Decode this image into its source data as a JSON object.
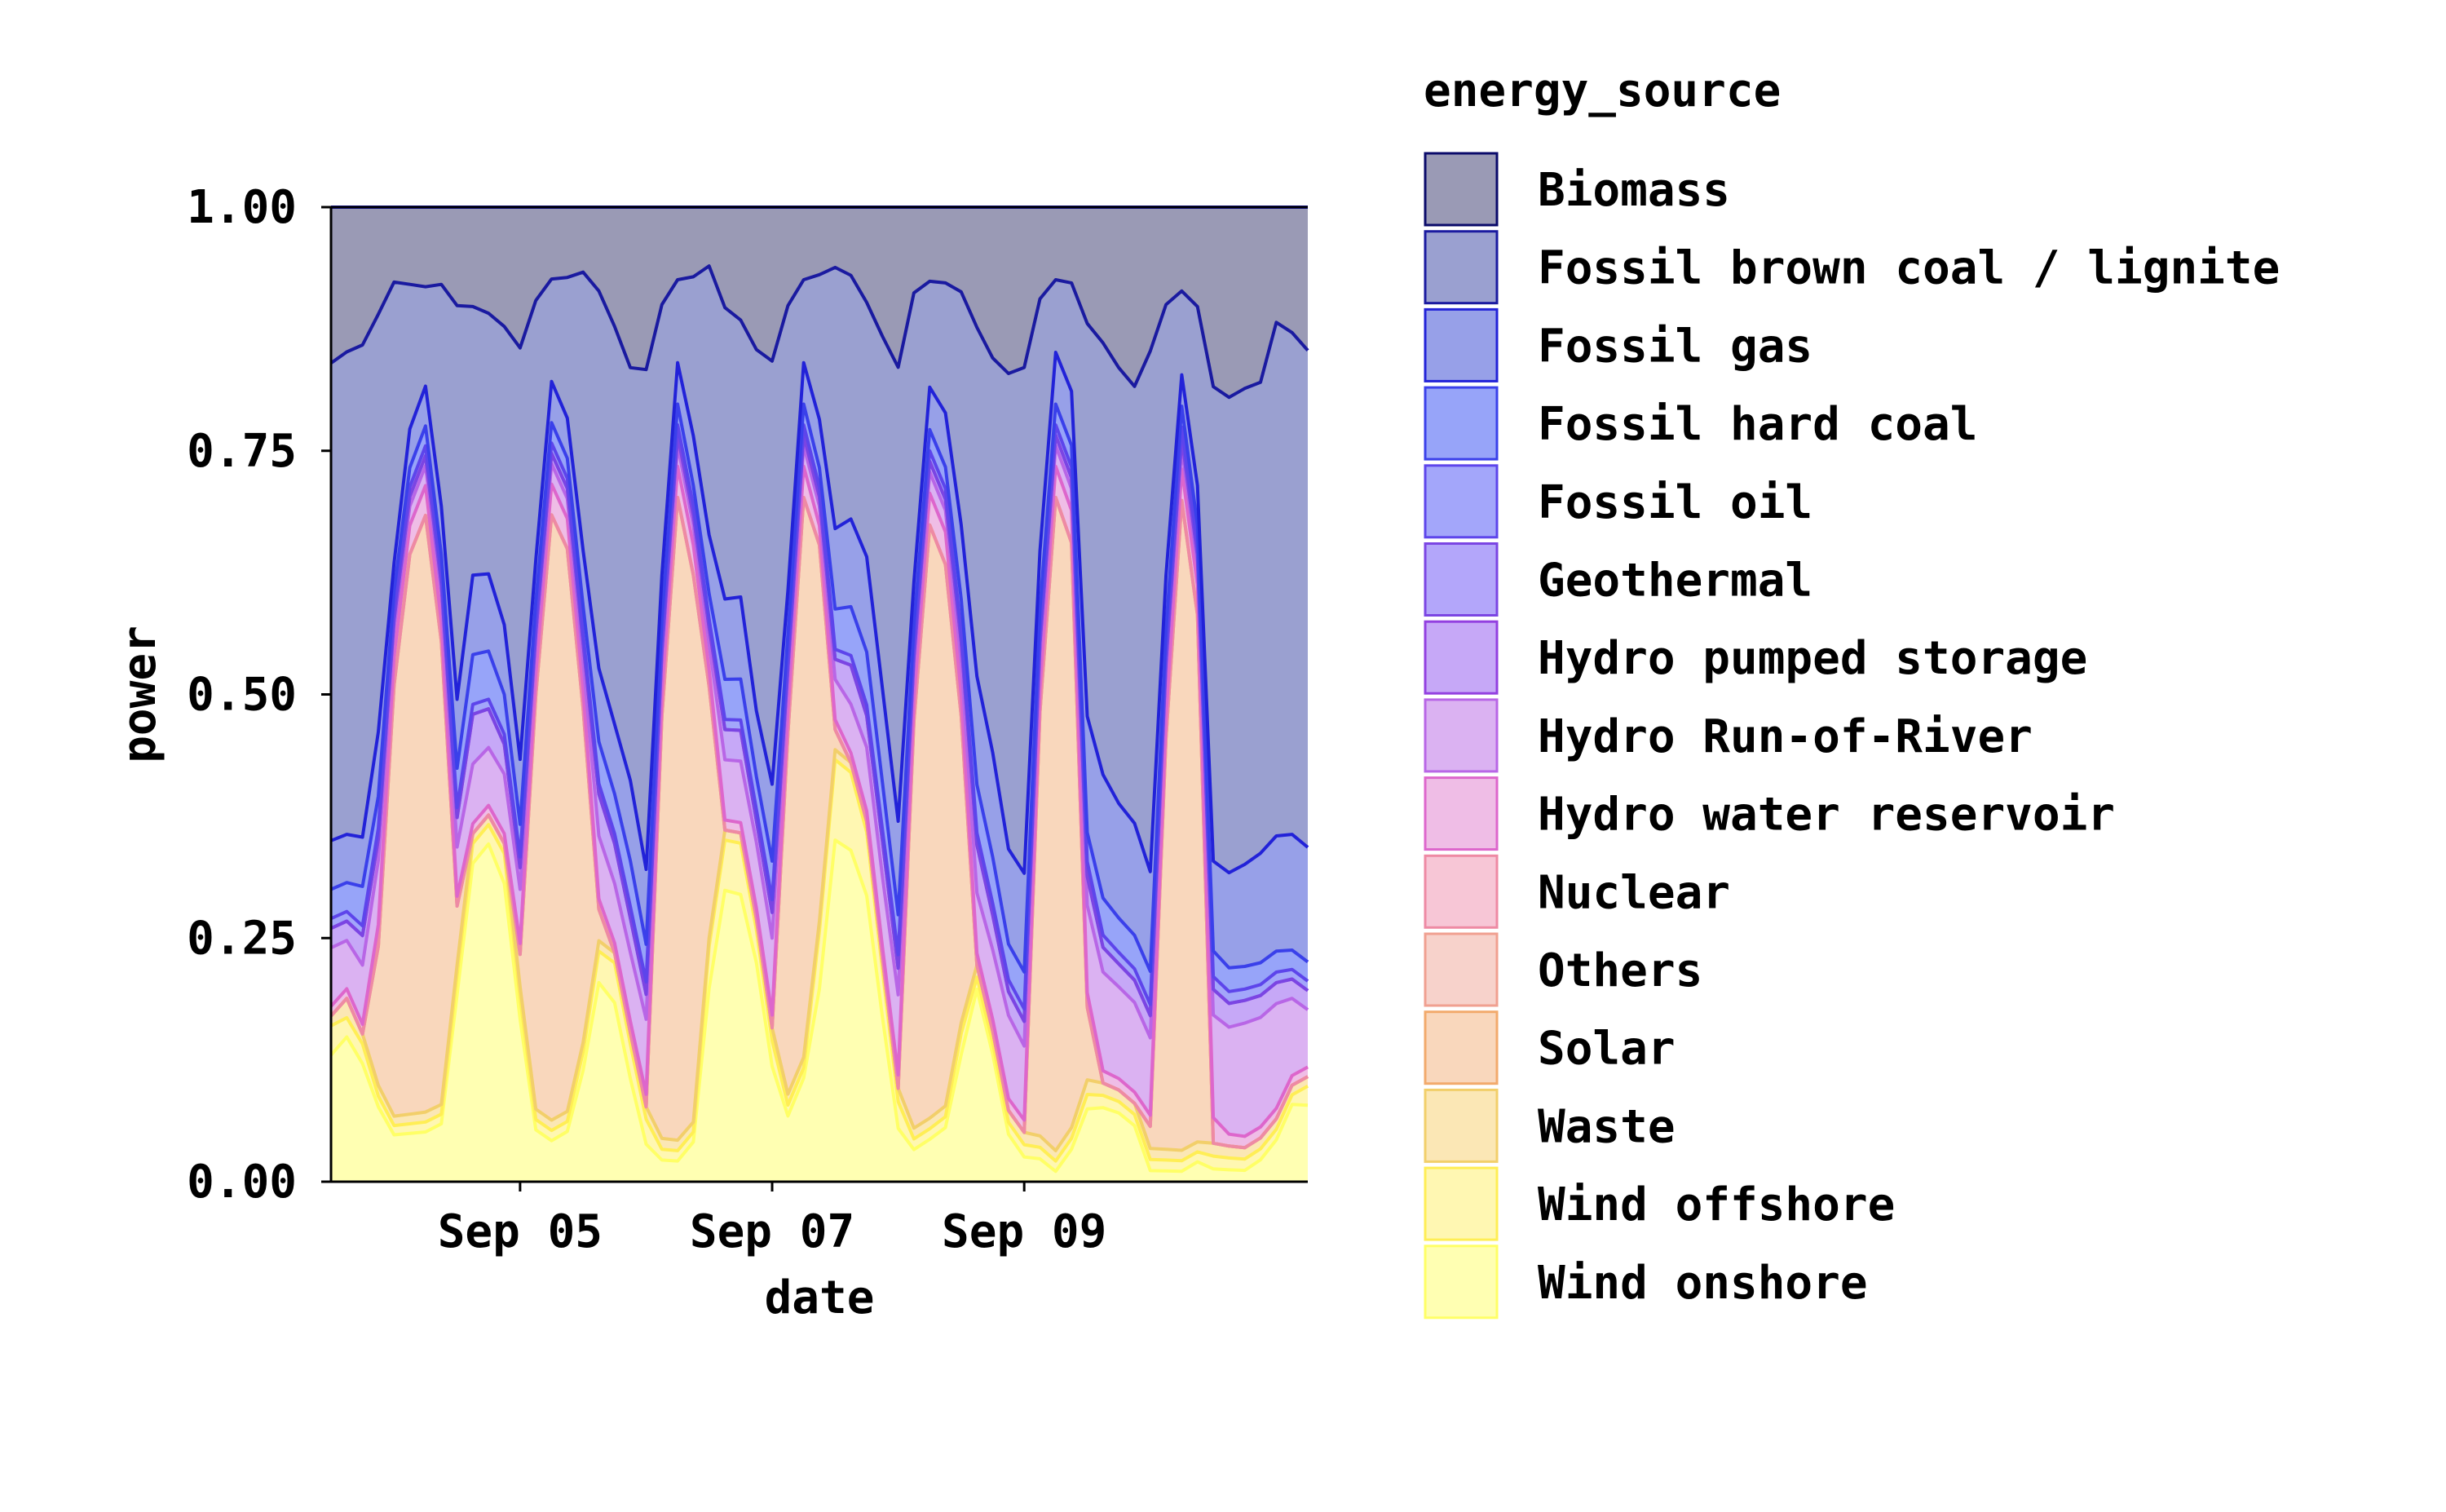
{
  "chart_data": {
    "type": "area",
    "stacked": true,
    "normalized": true,
    "title": "",
    "xlabel": "date",
    "ylabel": "power",
    "x_range": [
      "2023-09-03T12:00",
      "2023-09-11T06:00"
    ],
    "ylim": [
      0,
      1
    ],
    "y_ticks": [
      0.0,
      0.25,
      0.5,
      0.75,
      1.0
    ],
    "y_tick_labels": [
      "0.00",
      "0.25",
      "0.50",
      "0.75",
      "1.00"
    ],
    "x_ticks": [
      "2023-09-05",
      "2023-09-07",
      "2023-09-09"
    ],
    "x_tick_labels": [
      "Sep 05",
      "Sep 07",
      "Sep 09"
    ],
    "grid": false,
    "legend": {
      "title": "energy_source",
      "placement": "right"
    },
    "x": [
      "2023-09-03T12:00",
      "2023-09-03T15:00",
      "2023-09-03T18:00",
      "2023-09-03T21:00",
      "2023-09-04T00:00",
      "2023-09-04T03:00",
      "2023-09-04T06:00",
      "2023-09-04T09:00",
      "2023-09-04T12:00",
      "2023-09-04T15:00",
      "2023-09-04T18:00",
      "2023-09-04T21:00",
      "2023-09-05T00:00",
      "2023-09-05T03:00",
      "2023-09-05T06:00",
      "2023-09-05T09:00",
      "2023-09-05T12:00",
      "2023-09-05T15:00",
      "2023-09-05T18:00",
      "2023-09-05T21:00",
      "2023-09-06T00:00",
      "2023-09-06T03:00",
      "2023-09-06T06:00",
      "2023-09-06T09:00",
      "2023-09-06T12:00",
      "2023-09-06T15:00",
      "2023-09-06T18:00",
      "2023-09-06T21:00",
      "2023-09-07T00:00",
      "2023-09-07T03:00",
      "2023-09-07T06:00",
      "2023-09-07T09:00",
      "2023-09-07T12:00",
      "2023-09-07T15:00",
      "2023-09-07T18:00",
      "2023-09-07T21:00",
      "2023-09-08T00:00",
      "2023-09-08T03:00",
      "2023-09-08T06:00",
      "2023-09-08T09:00",
      "2023-09-08T12:00",
      "2023-09-08T15:00",
      "2023-09-08T18:00",
      "2023-09-08T21:00",
      "2023-09-09T00:00",
      "2023-09-09T03:00",
      "2023-09-09T06:00",
      "2023-09-09T09:00",
      "2023-09-09T12:00",
      "2023-09-09T15:00",
      "2023-09-09T18:00",
      "2023-09-09T21:00",
      "2023-09-10T00:00",
      "2023-09-10T03:00",
      "2023-09-10T06:00",
      "2023-09-10T09:00",
      "2023-09-10T12:00",
      "2023-09-10T15:00",
      "2023-09-10T18:00",
      "2023-09-10T21:00",
      "2023-09-11T00:00",
      "2023-09-11T03:00",
      "2023-09-11T06:00"
    ],
    "series": [
      {
        "name": "Wind onshore",
        "color": "#ffffb2",
        "line_color": "#ffff66",
        "values": [
          0.13,
          0.15,
          0.12,
          0.07,
          0.05,
          0.05,
          0.05,
          0.06,
          0.19,
          0.32,
          0.35,
          0.3,
          0.15,
          0.05,
          0.04,
          0.05,
          0.12,
          0.19,
          0.18,
          0.09,
          0.03,
          0.02,
          0.02,
          0.04,
          0.23,
          0.29,
          0.28,
          0.2,
          0.09,
          0.06,
          0.1,
          0.2,
          0.34,
          0.34,
          0.27,
          0.14,
          0.04,
          0.03,
          0.04,
          0.05,
          0.12,
          0.16,
          0.11,
          0.04,
          0.02,
          0.02,
          0.01,
          0.03,
          0.05,
          0.06,
          0.06,
          0.05,
          0.01,
          0.01,
          0.01,
          0.02,
          0.01,
          0.01,
          0.01,
          0.02,
          0.04,
          0.08,
          0.08
        ]
      },
      {
        "name": "Wind offshore",
        "color": "#fff7b2",
        "line_color": "#ffee55",
        "values": [
          0.03,
          0.02,
          0.02,
          0.01,
          0.01,
          0.01,
          0.01,
          0.01,
          0.02,
          0.02,
          0.02,
          0.03,
          0.02,
          0.01,
          0.01,
          0.01,
          0.02,
          0.03,
          0.04,
          0.03,
          0.02,
          0.01,
          0.01,
          0.01,
          0.05,
          0.05,
          0.05,
          0.03,
          0.02,
          0.01,
          0.01,
          0.06,
          0.08,
          0.08,
          0.06,
          0.04,
          0.02,
          0.01,
          0.01,
          0.01,
          0.02,
          0.01,
          0.01,
          0.01,
          0.01,
          0.01,
          0.01,
          0.01,
          0.01,
          0.01,
          0.01,
          0.01,
          0.01,
          0.01,
          0.01,
          0.01,
          0.01,
          0.01,
          0.01,
          0.01,
          0.01,
          0.01,
          0.02
        ]
      },
      {
        "name": "Waste",
        "color": "#fbe7b5",
        "line_color": "#f2cf6a",
        "values": [
          0.01,
          0.02,
          0.01,
          0.01,
          0.01,
          0.01,
          0.01,
          0.01,
          0.01,
          0.01,
          0.01,
          0.01,
          0.01,
          0.01,
          0.01,
          0.01,
          0.01,
          0.01,
          0.01,
          0.01,
          0.01,
          0.01,
          0.01,
          0.01,
          0.01,
          0.01,
          0.01,
          0.01,
          0.01,
          0.01,
          0.01,
          0.01,
          0.01,
          0.01,
          0.01,
          0.01,
          0.01,
          0.01,
          0.01,
          0.01,
          0.01,
          0.01,
          0.01,
          0.01,
          0.01,
          0.01,
          0.01,
          0.01,
          0.01,
          0.01,
          0.01,
          0.01,
          0.01,
          0.01,
          0.01,
          0.01,
          0.01,
          0.01,
          0.01,
          0.01,
          0.01,
          0.01,
          0.01
        ]
      },
      {
        "name": "Solar",
        "color": "#f9d7bc",
        "line_color": "#f2aa6c",
        "values": [
          0.0,
          0.0,
          0.0,
          0.13,
          0.46,
          0.58,
          0.6,
          0.48,
          0.06,
          0.0,
          0.0,
          0.0,
          0.03,
          0.4,
          0.59,
          0.56,
          0.36,
          0.03,
          0.0,
          0.0,
          0.0,
          0.39,
          0.62,
          0.55,
          0.3,
          0.0,
          0.0,
          0.0,
          0.0,
          0.33,
          0.54,
          0.39,
          0.02,
          0.0,
          0.0,
          0.0,
          0.0,
          0.38,
          0.56,
          0.5,
          0.29,
          0.0,
          0.0,
          0.0,
          0.0,
          0.37,
          0.63,
          0.54,
          0.05,
          0.0,
          0.0,
          0.0,
          0.02,
          0.38,
          0.62,
          0.53,
          0.0,
          0.0,
          0.0,
          0.0,
          0.0,
          0.0,
          0.0
        ]
      },
      {
        "name": "Others",
        "color": "#f7d2cb",
        "line_color": "#f0a090",
        "values": [
          0.0,
          0.0,
          0.0,
          0.0,
          0.0,
          0.0,
          0.0,
          0.0,
          0.0,
          0.0,
          0.0,
          0.0,
          0.0,
          0.0,
          0.0,
          0.0,
          0.0,
          0.0,
          0.0,
          0.0,
          0.0,
          0.0,
          0.0,
          0.0,
          0.0,
          0.0,
          0.0,
          0.0,
          0.0,
          0.0,
          0.0,
          0.0,
          0.0,
          0.0,
          0.0,
          0.0,
          0.0,
          0.0,
          0.0,
          0.0,
          0.0,
          0.0,
          0.0,
          0.0,
          0.0,
          0.0,
          0.0,
          0.0,
          0.0,
          0.0,
          0.0,
          0.0,
          0.0,
          0.0,
          0.0,
          0.0,
          0.0,
          0.0,
          0.0,
          0.0,
          0.0,
          0.0,
          0.0
        ]
      },
      {
        "name": "Nuclear",
        "color": "#f7c6d6",
        "line_color": "#ee8aa4",
        "values": [
          0.0,
          0.0,
          0.0,
          0.0,
          0.0,
          0.0,
          0.0,
          0.0,
          0.0,
          0.0,
          0.0,
          0.0,
          0.0,
          0.0,
          0.0,
          0.0,
          0.0,
          0.0,
          0.0,
          0.0,
          0.0,
          0.0,
          0.0,
          0.0,
          0.0,
          0.0,
          0.0,
          0.0,
          0.0,
          0.0,
          0.0,
          0.0,
          0.0,
          0.0,
          0.0,
          0.0,
          0.0,
          0.0,
          0.0,
          0.0,
          0.0,
          0.0,
          0.0,
          0.0,
          0.0,
          0.0,
          0.0,
          0.0,
          0.0,
          0.0,
          0.0,
          0.0,
          0.0,
          0.0,
          0.0,
          0.0,
          0.0,
          0.0,
          0.0,
          0.0,
          0.0,
          0.0,
          0.0
        ]
      },
      {
        "name": "Hydro water reservoir",
        "color": "#efbde6",
        "line_color": "#dd66cc",
        "values": [
          0.01,
          0.01,
          0.01,
          0.02,
          0.03,
          0.03,
          0.03,
          0.02,
          0.01,
          0.01,
          0.01,
          0.01,
          0.01,
          0.02,
          0.03,
          0.03,
          0.02,
          0.01,
          0.01,
          0.01,
          0.01,
          0.02,
          0.03,
          0.03,
          0.02,
          0.01,
          0.01,
          0.01,
          0.01,
          0.02,
          0.03,
          0.02,
          0.01,
          0.01,
          0.01,
          0.01,
          0.01,
          0.02,
          0.03,
          0.03,
          0.02,
          0.01,
          0.01,
          0.01,
          0.01,
          0.02,
          0.03,
          0.03,
          0.01,
          0.01,
          0.01,
          0.01,
          0.01,
          0.02,
          0.03,
          0.03,
          0.02,
          0.01,
          0.01,
          0.01,
          0.01,
          0.01,
          0.01
        ]
      },
      {
        "name": "Hydro Run-of-River",
        "color": "#dbb2f2",
        "line_color": "#b866e6",
        "values": [
          0.06,
          0.05,
          0.06,
          0.06,
          0.03,
          0.02,
          0.02,
          0.03,
          0.05,
          0.06,
          0.06,
          0.06,
          0.05,
          0.03,
          0.02,
          0.02,
          0.03,
          0.06,
          0.06,
          0.06,
          0.06,
          0.03,
          0.02,
          0.02,
          0.03,
          0.06,
          0.06,
          0.06,
          0.06,
          0.03,
          0.02,
          0.02,
          0.04,
          0.05,
          0.06,
          0.06,
          0.06,
          0.03,
          0.02,
          0.02,
          0.03,
          0.05,
          0.06,
          0.07,
          0.06,
          0.03,
          0.02,
          0.02,
          0.06,
          0.08,
          0.08,
          0.08,
          0.07,
          0.04,
          0.02,
          0.02,
          0.08,
          0.09,
          0.1,
          0.1,
          0.1,
          0.08,
          0.06
        ]
      },
      {
        "name": "Hydro pumped storage",
        "color": "#c6a8f7",
        "line_color": "#9340e0",
        "values": [
          0.02,
          0.02,
          0.03,
          0.02,
          0.01,
          0.01,
          0.01,
          0.01,
          0.03,
          0.05,
          0.04,
          0.03,
          0.02,
          0.01,
          0.01,
          0.01,
          0.02,
          0.04,
          0.04,
          0.03,
          0.02,
          0.01,
          0.01,
          0.01,
          0.02,
          0.03,
          0.03,
          0.02,
          0.02,
          0.01,
          0.01,
          0.01,
          0.02,
          0.04,
          0.03,
          0.03,
          0.02,
          0.01,
          0.01,
          0.01,
          0.02,
          0.04,
          0.03,
          0.02,
          0.02,
          0.01,
          0.01,
          0.01,
          0.02,
          0.02,
          0.02,
          0.02,
          0.02,
          0.01,
          0.01,
          0.01,
          0.02,
          0.02,
          0.02,
          0.02,
          0.02,
          0.02,
          0.02
        ]
      },
      {
        "name": "Geothermal",
        "color": "#b3a6fa",
        "line_color": "#7b45e3",
        "values": [
          0.0,
          0.0,
          0.0,
          0.0,
          0.0,
          0.0,
          0.0,
          0.0,
          0.0,
          0.0,
          0.0,
          0.0,
          0.0,
          0.0,
          0.0,
          0.0,
          0.0,
          0.0,
          0.0,
          0.0,
          0.0,
          0.0,
          0.0,
          0.0,
          0.0,
          0.0,
          0.0,
          0.0,
          0.0,
          0.0,
          0.0,
          0.0,
          0.0,
          0.0,
          0.0,
          0.0,
          0.0,
          0.0,
          0.0,
          0.0,
          0.0,
          0.0,
          0.0,
          0.0,
          0.0,
          0.0,
          0.0,
          0.0,
          0.0,
          0.0,
          0.0,
          0.0,
          0.0,
          0.0,
          0.0,
          0.0,
          0.0,
          0.0,
          0.0,
          0.0,
          0.0,
          0.0,
          0.0
        ]
      },
      {
        "name": "Fossil oil",
        "color": "#a3a6fa",
        "line_color": "#5d45eb",
        "values": [
          0.01,
          0.01,
          0.01,
          0.01,
          0.01,
          0.01,
          0.01,
          0.01,
          0.01,
          0.01,
          0.01,
          0.01,
          0.01,
          0.01,
          0.01,
          0.01,
          0.01,
          0.01,
          0.01,
          0.01,
          0.01,
          0.01,
          0.01,
          0.01,
          0.01,
          0.01,
          0.01,
          0.01,
          0.01,
          0.01,
          0.01,
          0.01,
          0.01,
          0.01,
          0.01,
          0.01,
          0.01,
          0.01,
          0.01,
          0.01,
          0.01,
          0.01,
          0.01,
          0.01,
          0.01,
          0.01,
          0.01,
          0.01,
          0.01,
          0.01,
          0.01,
          0.01,
          0.01,
          0.01,
          0.01,
          0.01,
          0.01,
          0.01,
          0.01,
          0.01,
          0.01,
          0.01,
          0.01
        ]
      },
      {
        "name": "Fossil hard coal",
        "color": "#97a4f9",
        "line_color": "#3a40ea",
        "values": [
          0.03,
          0.03,
          0.04,
          0.03,
          0.02,
          0.02,
          0.02,
          0.02,
          0.04,
          0.05,
          0.05,
          0.04,
          0.03,
          0.02,
          0.02,
          0.02,
          0.03,
          0.04,
          0.04,
          0.04,
          0.03,
          0.02,
          0.02,
          0.02,
          0.03,
          0.04,
          0.04,
          0.03,
          0.03,
          0.02,
          0.02,
          0.02,
          0.04,
          0.05,
          0.05,
          0.04,
          0.03,
          0.02,
          0.02,
          0.02,
          0.03,
          0.04,
          0.04,
          0.03,
          0.03,
          0.02,
          0.02,
          0.02,
          0.02,
          0.03,
          0.03,
          0.03,
          0.03,
          0.02,
          0.02,
          0.02,
          0.02,
          0.02,
          0.02,
          0.02,
          0.02,
          0.02,
          0.02
        ]
      },
      {
        "name": "Fossil gas",
        "color": "#97a0e8",
        "line_color": "#2222d8",
        "values": [
          0.05,
          0.05,
          0.05,
          0.06,
          0.03,
          0.04,
          0.04,
          0.05,
          0.07,
          0.08,
          0.08,
          0.07,
          0.06,
          0.04,
          0.04,
          0.04,
          0.06,
          0.07,
          0.07,
          0.07,
          0.06,
          0.04,
          0.04,
          0.05,
          0.07,
          0.08,
          0.08,
          0.06,
          0.06,
          0.04,
          0.04,
          0.05,
          0.08,
          0.09,
          0.09,
          0.08,
          0.07,
          0.04,
          0.04,
          0.05,
          0.07,
          0.09,
          0.09,
          0.08,
          0.08,
          0.05,
          0.05,
          0.05,
          0.08,
          0.1,
          0.1,
          0.1,
          0.09,
          0.05,
          0.03,
          0.04,
          0.07,
          0.08,
          0.09,
          0.1,
          0.11,
          0.12,
          0.12
        ]
      },
      {
        "name": "Fossil brown coal / lignite",
        "color": "#9aa0d0",
        "line_color": "#1a1aa0",
        "values": [
          0.49,
          0.5,
          0.5,
          0.39,
          0.3,
          0.15,
          0.1,
          0.23,
          0.4,
          0.27,
          0.27,
          0.3,
          0.38,
          0.25,
          0.1,
          0.14,
          0.3,
          0.36,
          0.4,
          0.36,
          0.4,
          0.25,
          0.08,
          0.16,
          0.32,
          0.29,
          0.27,
          0.33,
          0.33,
          0.26,
          0.08,
          0.15,
          0.26,
          0.25,
          0.24,
          0.3,
          0.34,
          0.27,
          0.1,
          0.12,
          0.22,
          0.29,
          0.34,
          0.4,
          0.41,
          0.22,
          0.07,
          0.1,
          0.27,
          0.35,
          0.38,
          0.39,
          0.47,
          0.25,
          0.08,
          0.18,
          0.37,
          0.4,
          0.42,
          0.43,
          0.49,
          0.52,
          0.52
        ]
      },
      {
        "name": "Biomass",
        "color": "#9a9ab5",
        "line_color": "#0a0a6a",
        "values": [
          0.16,
          0.15,
          0.14,
          0.1,
          0.08,
          0.08,
          0.08,
          0.08,
          0.1,
          0.1,
          0.11,
          0.12,
          0.13,
          0.09,
          0.07,
          0.07,
          0.07,
          0.08,
          0.12,
          0.14,
          0.13,
          0.09,
          0.07,
          0.07,
          0.07,
          0.1,
          0.11,
          0.13,
          0.12,
          0.09,
          0.07,
          0.07,
          0.06,
          0.07,
          0.09,
          0.11,
          0.12,
          0.08,
          0.07,
          0.07,
          0.08,
          0.1,
          0.13,
          0.14,
          0.13,
          0.08,
          0.07,
          0.07,
          0.08,
          0.11,
          0.14,
          0.16,
          0.13,
          0.09,
          0.08,
          0.1,
          0.14,
          0.16,
          0.16,
          0.16,
          0.11,
          0.13,
          0.15
        ]
      }
    ]
  }
}
